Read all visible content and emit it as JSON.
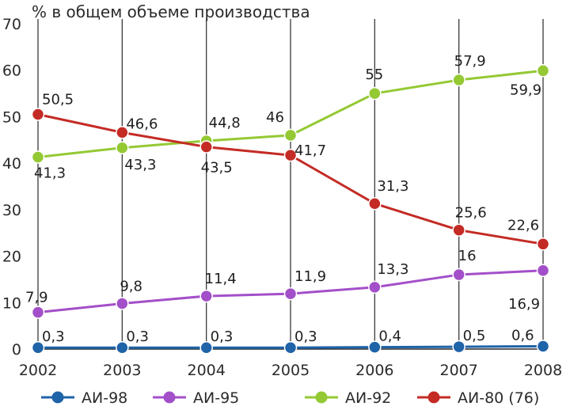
{
  "chart_data": {
    "type": "line",
    "title": "% в общем объеме производства",
    "xlabel": "",
    "ylabel": "",
    "categories": [
      "2002",
      "2003",
      "2004",
      "2005",
      "2006",
      "2007",
      "2008"
    ],
    "ylim": [
      0,
      70
    ],
    "yticks": [
      "0",
      "10",
      "20",
      "30",
      "40",
      "50",
      "60",
      "70"
    ],
    "grid": {
      "vertical": true,
      "horizontal": false
    },
    "legend_position": "bottom",
    "series": [
      {
        "key": "ai98",
        "name": "АИ-98",
        "color": "#1f63a8",
        "values": [
          0.3,
          0.3,
          0.3,
          0.3,
          0.4,
          0.5,
          0.6
        ],
        "labels": [
          "0,3",
          "0,3",
          "0,3",
          "0,3",
          "0,4",
          "0,5",
          "0,6"
        ]
      },
      {
        "key": "ai95",
        "name": "АИ-95",
        "color": "#a34fc9",
        "values": [
          7.9,
          9.8,
          11.4,
          11.9,
          13.3,
          16,
          16.9
        ],
        "labels": [
          "7,9",
          "9,8",
          "11,4",
          "11,9",
          "13,3",
          "16",
          "16,9"
        ]
      },
      {
        "key": "ai92",
        "name": "АИ-92",
        "color": "#94c934",
        "values": [
          41.3,
          43.3,
          44.8,
          46,
          55,
          57.9,
          59.9
        ],
        "labels": [
          "41,3",
          "43,3",
          "44,8",
          "46",
          "55",
          "57,9",
          "59,9"
        ]
      },
      {
        "key": "ai80",
        "name": "АИ-80 (76)",
        "color": "#c42b25",
        "values": [
          50.5,
          46.6,
          43.5,
          41.7,
          31.3,
          25.6,
          22.6
        ],
        "labels": [
          "50,5",
          "46,6",
          "43,5",
          "41,7",
          "31,3",
          "25,6",
          "22,6"
        ]
      }
    ]
  }
}
